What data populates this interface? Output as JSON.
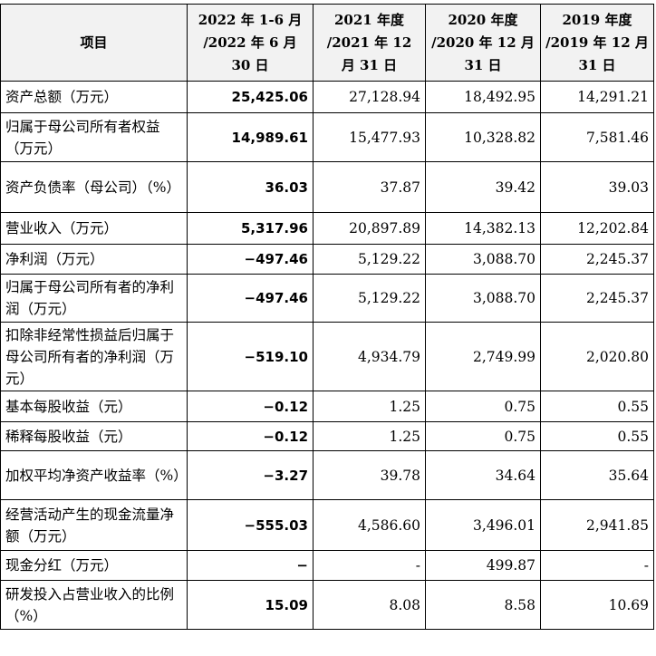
{
  "table": {
    "headers": [
      "项目",
      "2022 年 1-6 月 /2022 年 6 月 30 日",
      "2021 年度 /2021 年 12 月 31 日",
      "2020 年度 /2020 年 12 月 31 日",
      "2019 年度 /2019 年 12 月 31 日"
    ],
    "rows": [
      {
        "label": "资产总额（万元）",
        "v2022": "25,425.06",
        "v2021": "27,128.94",
        "v2020": "18,492.95",
        "v2019": "14,291.21"
      },
      {
        "label": "归属于母公司所有者权益（万元）",
        "v2022": "14,989.61",
        "v2021": "15,477.93",
        "v2020": "10,328.82",
        "v2019": "7,581.46"
      },
      {
        "label": "资产负债率（母公司）（%）",
        "v2022": "36.03",
        "v2021": "37.87",
        "v2020": "39.42",
        "v2019": "39.03"
      },
      {
        "label": "营业收入（万元）",
        "v2022": "5,317.96",
        "v2021": "20,897.89",
        "v2020": "14,382.13",
        "v2019": "12,202.84"
      },
      {
        "label": "净利润（万元）",
        "v2022": "−497.46",
        "v2021": "5,129.22",
        "v2020": "3,088.70",
        "v2019": "2,245.37"
      },
      {
        "label": "归属于母公司所有者的净利润（万元）",
        "v2022": "−497.46",
        "v2021": "5,129.22",
        "v2020": "3,088.70",
        "v2019": "2,245.37"
      },
      {
        "label": "扣除非经常性损益后归属于母公司所有者的净利润（万元）",
        "v2022": "−519.10",
        "v2021": "4,934.79",
        "v2020": "2,749.99",
        "v2019": "2,020.80"
      },
      {
        "label": "基本每股收益（元）",
        "v2022": "−0.12",
        "v2021": "1.25",
        "v2020": "0.75",
        "v2019": "0.55"
      },
      {
        "label": "稀释每股收益（元）",
        "v2022": "−0.12",
        "v2021": "1.25",
        "v2020": "0.75",
        "v2019": "0.55"
      },
      {
        "label": "加权平均净资产收益率（%）",
        "v2022": "−3.27",
        "v2021": "39.78",
        "v2020": "34.64",
        "v2019": "35.64"
      },
      {
        "label": "经营活动产生的现金流量净额（万元）",
        "v2022": "−555.03",
        "v2021": "4,586.60",
        "v2020": "3,496.01",
        "v2019": "2,941.85"
      },
      {
        "label": "现金分红（万元）",
        "v2022": "−",
        "v2021": "-",
        "v2020": "499.87",
        "v2019": "-"
      },
      {
        "label": "研发投入占营业收入的比例（%）",
        "v2022": "15.09",
        "v2021": "8.08",
        "v2020": "8.58",
        "v2019": "10.69"
      }
    ]
  }
}
